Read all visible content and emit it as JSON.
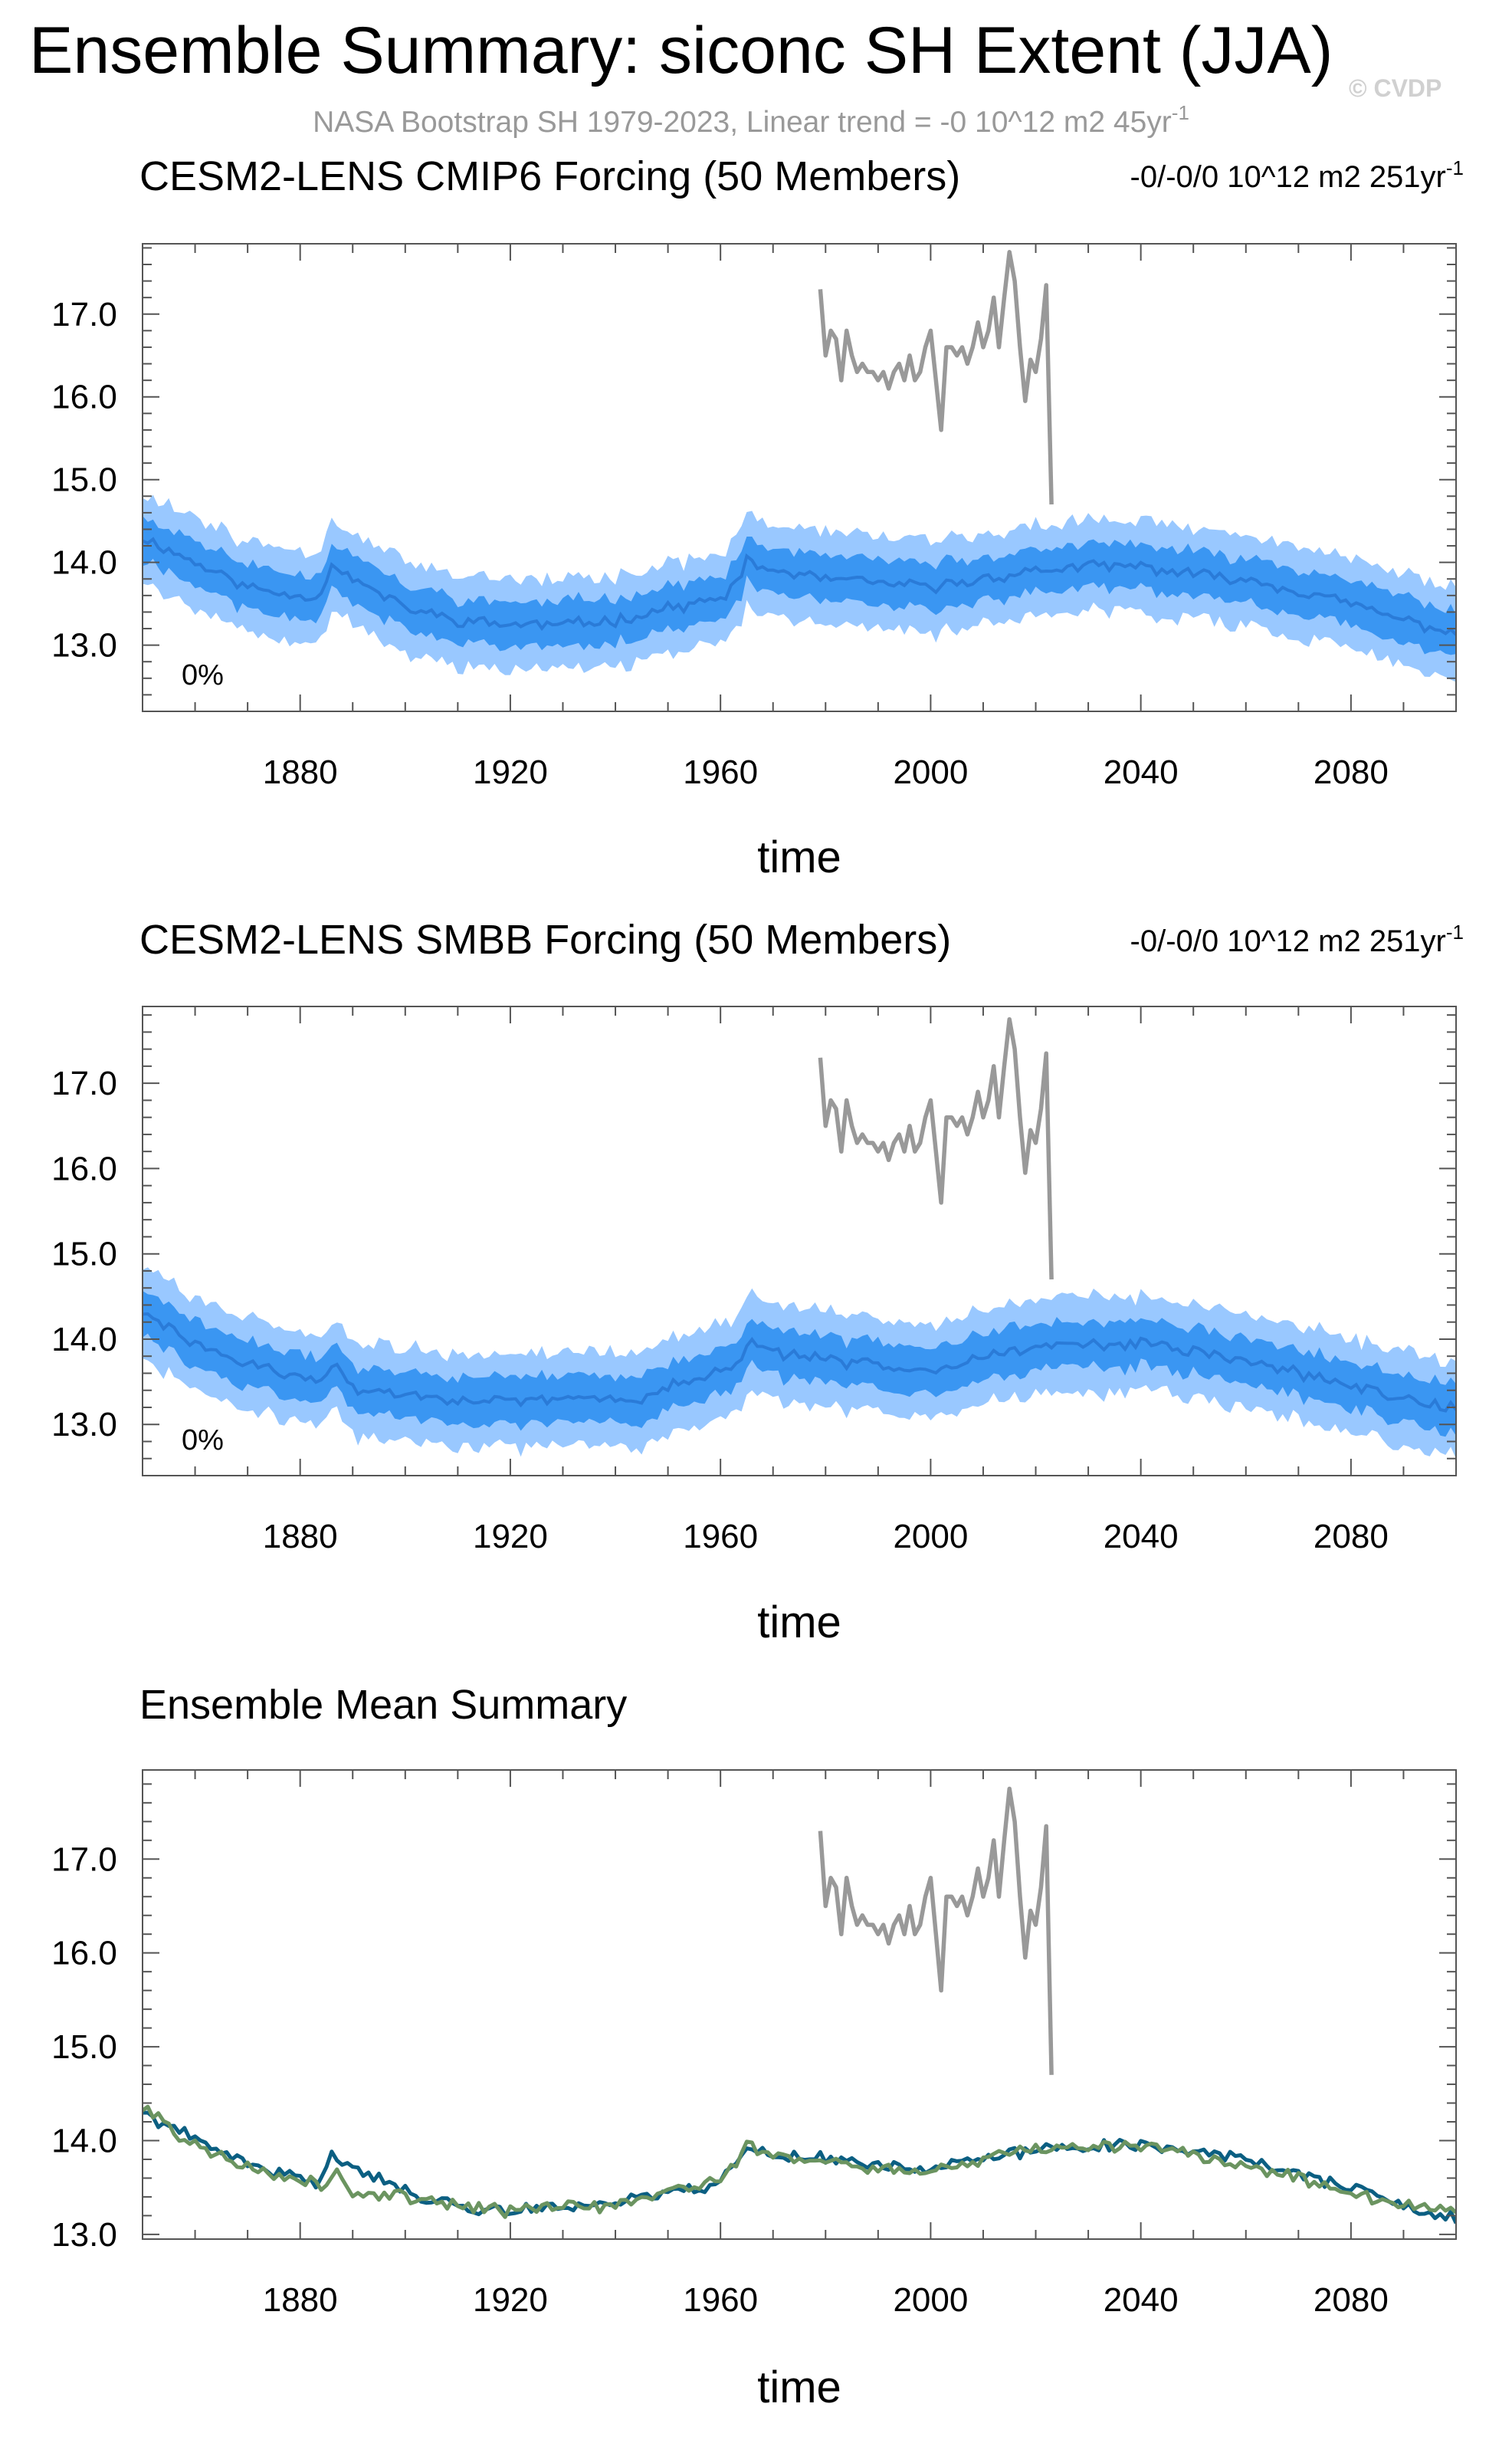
{
  "page": {
    "title": "Ensemble Summary: siconc SH Extent (JJA)",
    "subtitle_pre": "NASA Bootstrap SH 1979-2023, Linear trend = -0 10^12 m2 45yr",
    "subtitle_sup": "-1",
    "watermark": "© CVDP"
  },
  "colors": {
    "obs": "#999999",
    "spread_outer": "#99c8ff",
    "spread_inner": "#3a96f2",
    "ens_mean": "#2a7bd8",
    "cmip6_title": "#0b6f94",
    "smbb_title": "#64906a",
    "mean_cmip6": "#0b5f82",
    "mean_smbb": "#6b9460"
  },
  "chart_data": [
    {
      "type": "area",
      "title": "CESM2-LENS CMIP6 Forcing (50 Members)",
      "trend_pre": "-0/-0/0 10^12 m2 251yr",
      "trend_sup": "-1",
      "annotation": "0%",
      "xlabel": "time",
      "xlim": [
        1850,
        2100
      ],
      "ylim": [
        12.2,
        17.85
      ],
      "xticks": [
        1880,
        1920,
        1960,
        2000,
        2040,
        2080
      ],
      "yticks": [
        13.0,
        14.0,
        15.0,
        16.0,
        17.0
      ],
      "ytick_labels": [
        "13.0",
        "14.0",
        "15.0",
        "16.0",
        "17.0"
      ],
      "series": [
        {
          "values": {
            "anchors": [
              [
                1850,
                14.3
              ],
              [
                1860,
                14.0
              ],
              [
                1870,
                13.7
              ],
              [
                1879,
                13.6
              ],
              [
                1884,
                13.6
              ],
              [
                1886,
                14.0
              ],
              [
                1890,
                13.8
              ],
              [
                1900,
                13.45
              ],
              [
                1910,
                13.3
              ],
              [
                1920,
                13.25
              ],
              [
                1930,
                13.25
              ],
              [
                1940,
                13.3
              ],
              [
                1950,
                13.45
              ],
              [
                1960,
                13.55
              ],
              [
                1963,
                13.75
              ],
              [
                1965,
                14.0
              ],
              [
                1970,
                13.9
              ],
              [
                1980,
                13.8
              ],
              [
                1990,
                13.75
              ],
              [
                2000,
                13.7
              ],
              [
                2010,
                13.8
              ],
              [
                2020,
                13.9
              ],
              [
                2030,
                13.95
              ],
              [
                2040,
                13.95
              ],
              [
                2050,
                13.85
              ],
              [
                2060,
                13.8
              ],
              [
                2070,
                13.65
              ],
              [
                2080,
                13.5
              ],
              [
                2090,
                13.3
              ],
              [
                2100,
                13.15
              ]
            ],
            "inner_half": 0.27,
            "outer_half": 0.55,
            "seed": 11
          }
        },
        {
          "name": "NASA Bootstrap SH",
          "x": [
            1979,
            1980,
            1981,
            1982,
            1983,
            1984,
            1985,
            1986,
            1987,
            1988,
            1989,
            1990,
            1991,
            1992,
            1993,
            1994,
            1995,
            1996,
            1997,
            1998,
            1999,
            2000,
            2001,
            2002,
            2003,
            2004,
            2005,
            2006,
            2007,
            2008,
            2009,
            2010,
            2011,
            2012,
            2013,
            2014,
            2015,
            2016,
            2017,
            2018,
            2019,
            2020,
            2021,
            2022,
            2023
          ],
          "values": [
            17.3,
            16.5,
            16.8,
            16.7,
            16.2,
            16.8,
            16.5,
            16.3,
            16.4,
            16.3,
            16.3,
            16.2,
            16.3,
            16.1,
            16.3,
            16.4,
            16.2,
            16.5,
            16.2,
            16.3,
            16.6,
            16.8,
            16.2,
            15.6,
            16.6,
            16.6,
            16.5,
            16.6,
            16.4,
            16.6,
            16.9,
            16.6,
            16.8,
            17.2,
            16.6,
            17.2,
            17.75,
            17.4,
            16.6,
            15.95,
            16.45,
            16.3,
            16.7,
            17.35,
            14.7
          ]
        }
      ]
    },
    {
      "type": "area",
      "title": "CESM2-LENS SMBB Forcing (50 Members)",
      "trend_pre": "-0/-0/0 10^12 m2 251yr",
      "trend_sup": "-1",
      "annotation": "0%",
      "xlabel": "time",
      "xlim": [
        1850,
        2100
      ],
      "ylim": [
        12.4,
        17.9
      ],
      "xticks": [
        1880,
        1920,
        1960,
        2000,
        2040,
        2080
      ],
      "yticks": [
        13.0,
        14.0,
        15.0,
        16.0,
        17.0
      ],
      "ytick_labels": [
        "13.0",
        "14.0",
        "15.0",
        "16.0",
        "17.0"
      ],
      "series": [
        {
          "values": {
            "anchors": [
              [
                1850,
                14.3
              ],
              [
                1860,
                13.95
              ],
              [
                1870,
                13.7
              ],
              [
                1880,
                13.55
              ],
              [
                1884,
                13.5
              ],
              [
                1887,
                13.75
              ],
              [
                1890,
                13.4
              ],
              [
                1900,
                13.35
              ],
              [
                1910,
                13.3
              ],
              [
                1920,
                13.25
              ],
              [
                1930,
                13.3
              ],
              [
                1940,
                13.3
              ],
              [
                1945,
                13.3
              ],
              [
                1950,
                13.45
              ],
              [
                1960,
                13.6
              ],
              [
                1963,
                13.7
              ],
              [
                1965,
                13.95
              ],
              [
                1970,
                13.85
              ],
              [
                1980,
                13.75
              ],
              [
                1990,
                13.7
              ],
              [
                2000,
                13.65
              ],
              [
                2010,
                13.8
              ],
              [
                2020,
                13.9
              ],
              [
                2030,
                13.95
              ],
              [
                2040,
                13.95
              ],
              [
                2050,
                13.85
              ],
              [
                2060,
                13.75
              ],
              [
                2070,
                13.6
              ],
              [
                2080,
                13.45
              ],
              [
                2090,
                13.3
              ],
              [
                2100,
                13.2
              ]
            ],
            "inner_half": 0.27,
            "outer_half": 0.55,
            "seed": 29
          }
        },
        {
          "name": "NASA Bootstrap SH",
          "x": [
            1979,
            1980,
            1981,
            1982,
            1983,
            1984,
            1985,
            1986,
            1987,
            1988,
            1989,
            1990,
            1991,
            1992,
            1993,
            1994,
            1995,
            1996,
            1997,
            1998,
            1999,
            2000,
            2001,
            2002,
            2003,
            2004,
            2005,
            2006,
            2007,
            2008,
            2009,
            2010,
            2011,
            2012,
            2013,
            2014,
            2015,
            2016,
            2017,
            2018,
            2019,
            2020,
            2021,
            2022,
            2023
          ],
          "values": [
            17.3,
            16.5,
            16.8,
            16.7,
            16.2,
            16.8,
            16.5,
            16.3,
            16.4,
            16.3,
            16.3,
            16.2,
            16.3,
            16.1,
            16.3,
            16.4,
            16.2,
            16.5,
            16.2,
            16.3,
            16.6,
            16.8,
            16.2,
            15.6,
            16.6,
            16.6,
            16.5,
            16.6,
            16.4,
            16.6,
            16.9,
            16.6,
            16.8,
            17.2,
            16.6,
            17.2,
            17.75,
            17.4,
            16.6,
            15.95,
            16.45,
            16.3,
            16.7,
            17.35,
            14.7
          ]
        }
      ]
    },
    {
      "type": "line",
      "title": "Ensemble Mean Summary",
      "xlabel": "time",
      "xlim": [
        1850,
        2100
      ],
      "ylim": [
        12.95,
        17.95
      ],
      "xticks": [
        1880,
        1920,
        1960,
        2000,
        2040,
        2080
      ],
      "yticks": [
        13.0,
        14.0,
        15.0,
        16.0,
        17.0
      ],
      "ytick_labels": [
        "13.0",
        "14.0",
        "15.0",
        "16.0",
        "17.0"
      ],
      "series": [
        {
          "values": {
            "anchors": [
              [
                1850,
                14.3
              ],
              [
                1860,
                14.0
              ],
              [
                1870,
                13.75
              ],
              [
                1879,
                13.6
              ],
              [
                1884,
                13.55
              ],
              [
                1886,
                13.85
              ],
              [
                1890,
                13.75
              ],
              [
                1900,
                13.45
              ],
              [
                1910,
                13.3
              ],
              [
                1920,
                13.25
              ],
              [
                1930,
                13.3
              ],
              [
                1940,
                13.35
              ],
              [
                1950,
                13.45
              ],
              [
                1960,
                13.55
              ],
              [
                1963,
                13.75
              ],
              [
                1965,
                13.95
              ],
              [
                1970,
                13.85
              ],
              [
                1980,
                13.8
              ],
              [
                1990,
                13.75
              ],
              [
                2000,
                13.7
              ],
              [
                2010,
                13.8
              ],
              [
                2020,
                13.9
              ],
              [
                2030,
                13.95
              ],
              [
                2040,
                13.95
              ],
              [
                2050,
                13.9
              ],
              [
                2060,
                13.8
              ],
              [
                2070,
                13.65
              ],
              [
                2080,
                13.5
              ],
              [
                2090,
                13.3
              ],
              [
                2100,
                13.15
              ]
            ],
            "seed": 41
          }
        },
        {
          "values": {
            "anchors": [
              [
                1850,
                14.35
              ],
              [
                1860,
                13.95
              ],
              [
                1870,
                13.7
              ],
              [
                1880,
                13.6
              ],
              [
                1884,
                13.5
              ],
              [
                1887,
                13.7
              ],
              [
                1890,
                13.45
              ],
              [
                1900,
                13.4
              ],
              [
                1910,
                13.3
              ],
              [
                1920,
                13.25
              ],
              [
                1930,
                13.3
              ],
              [
                1940,
                13.3
              ],
              [
                1950,
                13.45
              ],
              [
                1960,
                13.6
              ],
              [
                1963,
                13.75
              ],
              [
                1965,
                13.95
              ],
              [
                1970,
                13.85
              ],
              [
                1980,
                13.75
              ],
              [
                1990,
                13.7
              ],
              [
                2000,
                13.65
              ],
              [
                2010,
                13.8
              ],
              [
                2020,
                13.9
              ],
              [
                2030,
                13.95
              ],
              [
                2040,
                13.95
              ],
              [
                2050,
                13.85
              ],
              [
                2060,
                13.75
              ],
              [
                2070,
                13.6
              ],
              [
                2080,
                13.45
              ],
              [
                2090,
                13.3
              ],
              [
                2100,
                13.25
              ]
            ],
            "seed": 57
          }
        },
        {
          "name": "NASA Bootstrap SH",
          "x": [
            1979,
            1980,
            1981,
            1982,
            1983,
            1984,
            1985,
            1986,
            1987,
            1988,
            1989,
            1990,
            1991,
            1992,
            1993,
            1994,
            1995,
            1996,
            1997,
            1998,
            1999,
            2000,
            2001,
            2002,
            2003,
            2004,
            2005,
            2006,
            2007,
            2008,
            2009,
            2010,
            2011,
            2012,
            2013,
            2014,
            2015,
            2016,
            2017,
            2018,
            2019,
            2020,
            2021,
            2022,
            2023
          ],
          "values": [
            17.3,
            16.5,
            16.8,
            16.7,
            16.2,
            16.8,
            16.5,
            16.3,
            16.4,
            16.3,
            16.3,
            16.2,
            16.3,
            16.1,
            16.3,
            16.4,
            16.2,
            16.5,
            16.2,
            16.3,
            16.6,
            16.8,
            16.2,
            15.6,
            16.6,
            16.6,
            16.5,
            16.6,
            16.4,
            16.6,
            16.9,
            16.6,
            16.8,
            17.2,
            16.6,
            17.2,
            17.75,
            17.4,
            16.6,
            15.95,
            16.45,
            16.3,
            16.7,
            17.35,
            14.7
          ]
        }
      ]
    }
  ]
}
